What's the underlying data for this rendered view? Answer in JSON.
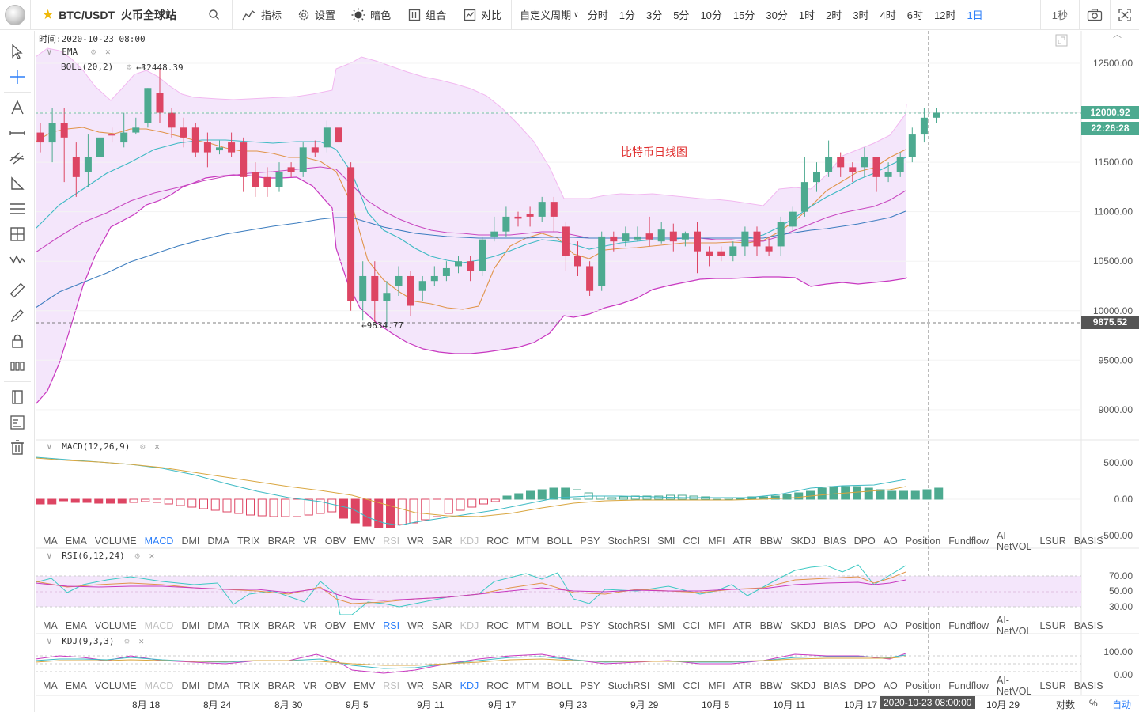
{
  "topbar": {
    "symbol": "BTC/USDT",
    "exchange": "火币全球站",
    "indicators": "指标",
    "settings": "设置",
    "dark": "暗色",
    "combine": "组合",
    "compare": "对比",
    "custom_period": "自定义周期",
    "periods": [
      "分时",
      "1分",
      "3分",
      "5分",
      "10分",
      "15分",
      "30分",
      "1时",
      "2时",
      "3时",
      "4时",
      "6时",
      "12时",
      "1日"
    ],
    "active_period": "1日",
    "second": "1秒"
  },
  "chart": {
    "time_label": "时间:2020-10-23 08:00",
    "ema_label": "EMA",
    "boll_label": "BOLL(20,2)",
    "high_marker": "←12448.39",
    "low_marker": "←9834.77",
    "annotation": "比特币日线图",
    "price_ticks": [
      "12500.00",
      "12000.00",
      "11500.00",
      "11000.00",
      "10500.00",
      "10000.00",
      "9500.00",
      "9000.00"
    ],
    "price_tag": "12000.92",
    "countdown_tag": "22:26:28",
    "cross_tag": "9875.52",
    "candle_up_color": "#4daa90",
    "candle_down_color": "#dd4563"
  },
  "macd": {
    "label": "MACD(12,26,9)",
    "ticks": [
      "500.00",
      "0.00",
      "-500.00"
    ]
  },
  "rsi": {
    "label": "RSI(6,12,24)",
    "ticks": [
      "70.00",
      "50.00",
      "30.00"
    ]
  },
  "kdj": {
    "label": "KDJ(9,3,3)",
    "ticks": [
      "100.00",
      "0.00"
    ]
  },
  "indicator_tabs": [
    "MA",
    "EMA",
    "VOLUME",
    "MACD",
    "DMI",
    "DMA",
    "TRIX",
    "BRAR",
    "VR",
    "OBV",
    "EMV",
    "RSI",
    "WR",
    "SAR",
    "KDJ",
    "ROC",
    "MTM",
    "BOLL",
    "PSY",
    "StochRSI",
    "SMI",
    "CCI",
    "MFI",
    "ATR",
    "BBW",
    "SKDJ",
    "BIAS",
    "DPO",
    "AO",
    "Position",
    "Fundflow",
    "AI-NetVOL",
    "LSUR",
    "BASIS"
  ],
  "xaxis": {
    "dates": [
      "8月 18",
      "8月 24",
      "8月 30",
      "9月 5",
      "9月 11",
      "9月 17",
      "9月 23",
      "9月 29",
      "10月 5",
      "10月 11",
      "10月 17",
      "10月 29"
    ],
    "cursor_date": "2020-10-23 08:00:00",
    "log_label": "对数",
    "pct_label": "%",
    "auto_label": "自动"
  }
}
